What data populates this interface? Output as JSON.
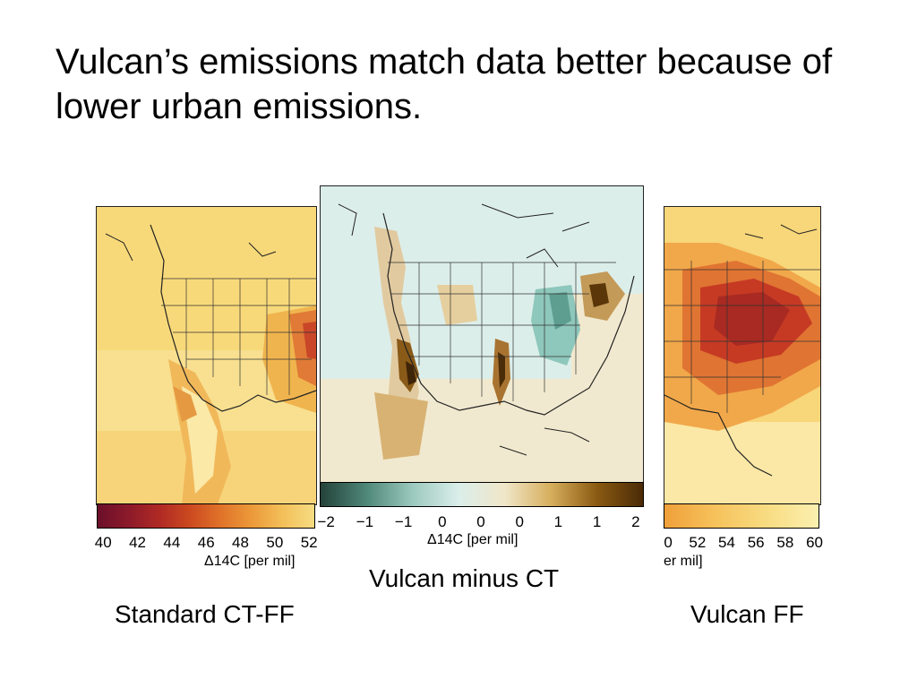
{
  "slide": {
    "title_line1": "Vulcan’s emissions match data better because of",
    "title_line2": "lower urban emissions."
  },
  "panels": {
    "left": {
      "caption": "Standard CT-FF",
      "colorbar_ticks": [
        "40",
        "42",
        "44",
        "46",
        "48",
        "50",
        "52"
      ],
      "colorbar_label": "Δ14C [per mil]"
    },
    "middle": {
      "caption": "Vulcan minus CT",
      "colorbar_ticks": [
        "−2",
        "−1",
        "−1",
        "0",
        "0",
        "0",
        "1",
        "1",
        "2"
      ],
      "colorbar_label": "Δ14C [per mil]"
    },
    "right": {
      "caption": "Vulcan FF",
      "colorbar_ticks": [
        "0",
        "52",
        "54",
        "56",
        "58",
        "60"
      ],
      "colorbar_label": "er mil]"
    }
  },
  "colors": {
    "left_scale": [
      "#6b0f2a",
      "#8c1a2a",
      "#b02a24",
      "#cc4a20",
      "#e0742a",
      "#ec9a3a",
      "#f3c05a",
      "#f6dc82"
    ],
    "middle_scale": [
      "#24423a",
      "#4f8878",
      "#9cc9bf",
      "#dbeeea",
      "#f0e6c8",
      "#d6ae5c",
      "#8a5a12",
      "#4a2a06"
    ],
    "right_scale": [
      "#f0a03a",
      "#f6c25c",
      "#f8dc82",
      "#fbf0b0"
    ]
  }
}
